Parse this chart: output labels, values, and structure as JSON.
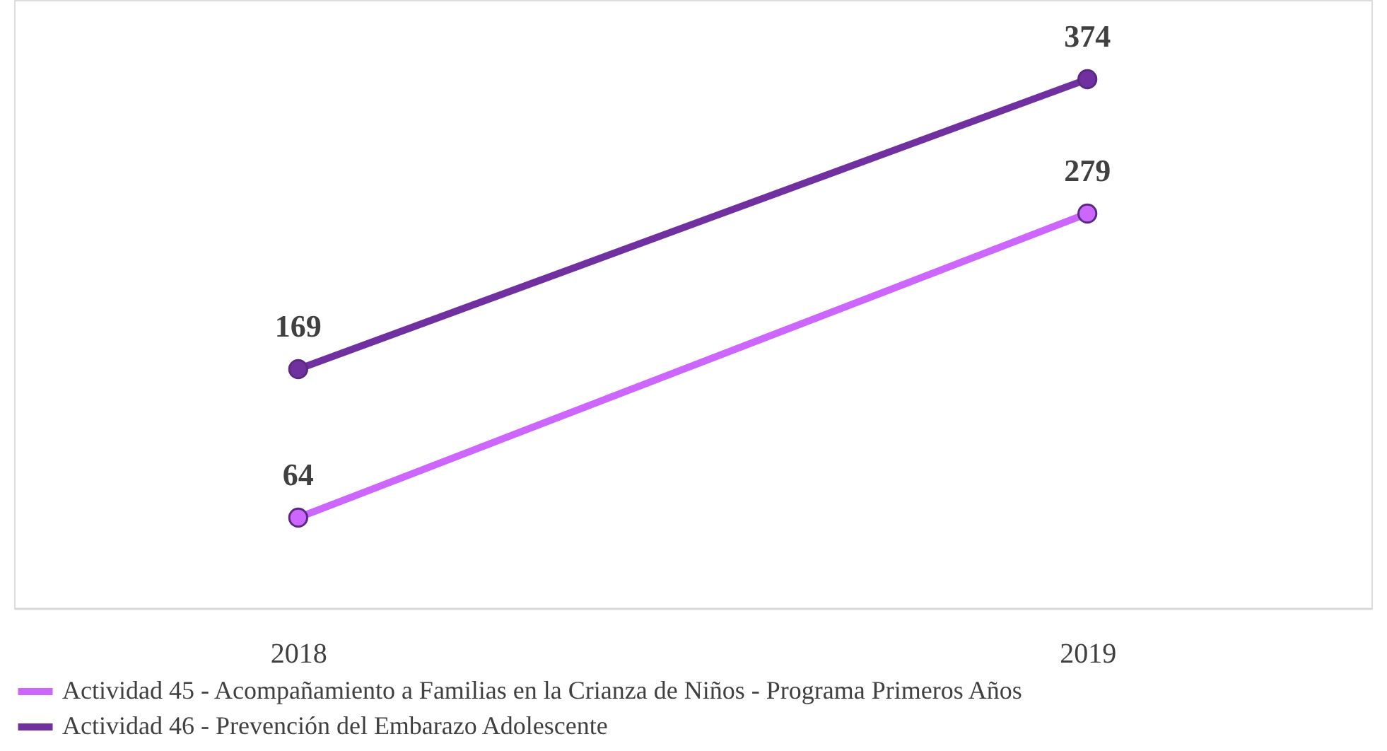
{
  "chart_data": {
    "type": "line",
    "categories": [
      "2018",
      "2019"
    ],
    "series": [
      {
        "name": "Actividad 45 - Acompañamiento a Familias en la Crianza de Niños - Programa Primeros Años",
        "color": "#cc66ff",
        "values": [
          64,
          279
        ]
      },
      {
        "name": "Actividad 46 - Prevención del Embarazo Adolescente",
        "color": "#7030a0",
        "values": [
          169,
          374
        ]
      }
    ],
    "ylim": [
      0,
      430
    ],
    "data_labels": true,
    "legend": "bottom",
    "grid": false,
    "tick_labels": "x",
    "marker": "circle",
    "line_style": "solid"
  }
}
